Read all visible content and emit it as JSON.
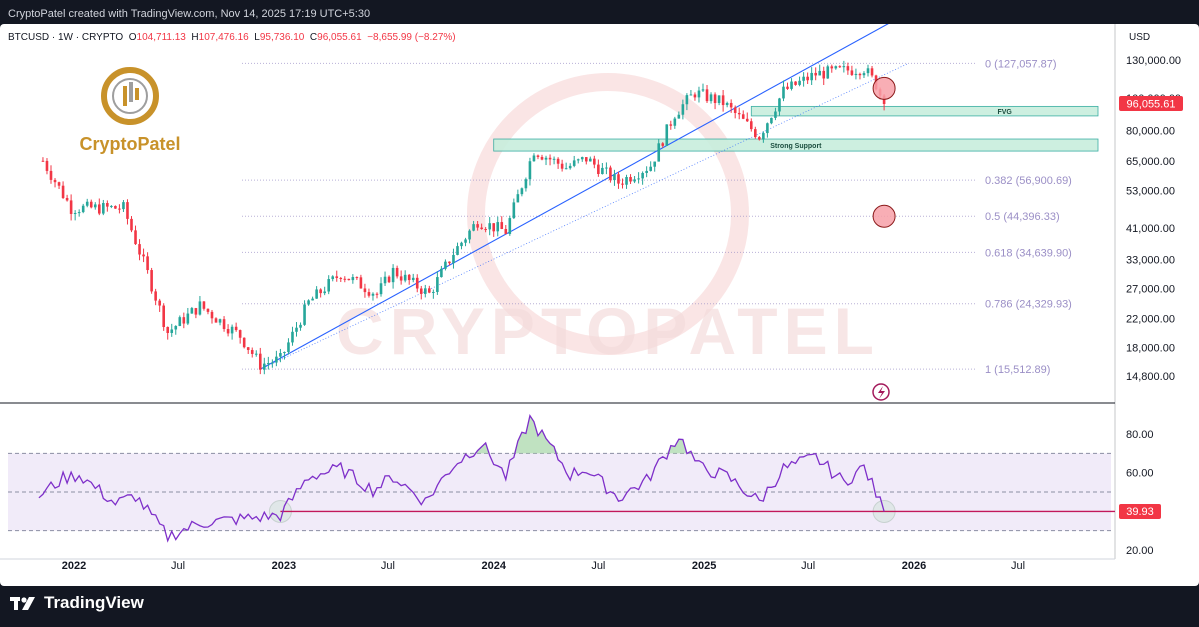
{
  "header": {
    "caption": "CryptoPatel created with TradingView.com, Nov 14, 2025 17:19 UTC+5:30"
  },
  "ohlc": {
    "symbol": "BTCUSD · 1W · CRYPTO",
    "o_label": "O",
    "o": "104,711.13",
    "h_label": "H",
    "h": "107,476.16",
    "l_label": "L",
    "l": "95,736.10",
    "c_label": "C",
    "c": "96,055.61",
    "change": "−8,655.99 (−8.27%)"
  },
  "currency": "USD",
  "watermark_logo": "CryptoPatel",
  "watermark_text": "CRYPTOPATEL",
  "footer": {
    "brand": "TradingView",
    "logo_icon": "tradingview-logo-icon"
  },
  "colors": {
    "bull": "#26a69a",
    "bear": "#f23645",
    "trend": "#2962ff",
    "fib": "#9b8fc6",
    "rsi": "#7e2fc9",
    "rsi_band": "#ede6f8",
    "zone": "#c8eedd",
    "zone_border": "#26a69a",
    "marker_red": "#f7a0a8",
    "marker_green": "#9be59b"
  },
  "chart_data": {
    "type": "candlestick",
    "price_axis": {
      "scale": "log",
      "ticks": [
        130000,
        100000,
        80000,
        65000,
        53000,
        41000,
        33000,
        27000,
        22000,
        18000,
        14800
      ],
      "tick_labels": [
        "130,000.00",
        "100,000.00",
        "80,000.00",
        "65,000.00",
        "53,000.00",
        "41,000.00",
        "33,000.00",
        "27,000.00",
        "22,000.00",
        "18,000.00",
        "14,800.00"
      ]
    },
    "last_price": {
      "value": 96055.61,
      "label": "96,055.61"
    },
    "x_axis": {
      "labels": [
        "2022",
        "Jul",
        "2023",
        "Jul",
        "2024",
        "Jul",
        "2025",
        "Jul",
        "2026",
        "Jul"
      ],
      "dates": [
        "2022-01-01",
        "2022-07-01",
        "2023-01-01",
        "2023-07-01",
        "2024-01-01",
        "2024-07-01",
        "2025-01-01",
        "2025-07-01",
        "2026-01-01",
        "2026-07-01"
      ]
    },
    "price_waypoints": [
      [
        "2021-11-08",
        65000
      ],
      [
        "2021-12-27",
        47000
      ],
      [
        "2022-03-28",
        47000
      ],
      [
        "2022-05-09",
        30000
      ],
      [
        "2022-06-13",
        20000
      ],
      [
        "2022-08-08",
        24000
      ],
      [
        "2022-10-17",
        19500
      ],
      [
        "2022-11-21",
        16000
      ],
      [
        "2022-12-26",
        16600
      ],
      [
        "2023-02-13",
        24500
      ],
      [
        "2023-04-10",
        30000
      ],
      [
        "2023-06-12",
        26000
      ],
      [
        "2023-07-10",
        30500
      ],
      [
        "2023-09-11",
        26000
      ],
      [
        "2023-10-23",
        34500
      ],
      [
        "2023-12-04",
        43000
      ],
      [
        "2024-01-22",
        40000
      ],
      [
        "2024-03-11",
        70000
      ],
      [
        "2024-05-06",
        62000
      ],
      [
        "2024-06-10",
        66000
      ],
      [
        "2024-08-05",
        56000
      ],
      [
        "2024-09-30",
        63000
      ],
      [
        "2024-11-11",
        90000
      ],
      [
        "2024-12-16",
        104000
      ],
      [
        "2025-02-03",
        97000
      ],
      [
        "2025-04-07",
        77000
      ],
      [
        "2025-05-19",
        105000
      ],
      [
        "2025-07-14",
        118000
      ],
      [
        "2025-10-06",
        123000
      ],
      [
        "2025-10-27",
        110000
      ],
      [
        "2025-11-10",
        96055
      ]
    ],
    "fib_levels": [
      {
        "ratio": "0",
        "price": 127057.87,
        "label": "0 (127,057.87)"
      },
      {
        "ratio": "0.382",
        "price": 56900.69,
        "label": "0.382 (56,900.69)"
      },
      {
        "ratio": "0.5",
        "price": 44396.33,
        "label": "0.5 (44,396.33)"
      },
      {
        "ratio": "0.618",
        "price": 34639.9,
        "label": "0.618 (34,639.90)"
      },
      {
        "ratio": "0.786",
        "price": 24329.93,
        "label": "0.786 (24,329.93)"
      },
      {
        "ratio": "1",
        "price": 15512.89,
        "label": "1 (15,512.89)"
      }
    ],
    "zones": [
      {
        "label": "FVG",
        "from": "2025-03-24",
        "price_low": 88500,
        "price_high": 94500
      },
      {
        "label": "Strong Support",
        "from": "2024-01-01",
        "price_low": 69500,
        "price_high": 75500
      }
    ],
    "trendlines": [
      {
        "style": "solid",
        "from": [
          "2022-11-21",
          15500
        ],
        "to": [
          "2025-12-22",
          180000
        ]
      },
      {
        "style": "dotted",
        "from": [
          "2022-11-21",
          15500
        ],
        "to": [
          "2025-12-22",
          127000
        ]
      }
    ],
    "markers": [
      {
        "type": "red-circle",
        "date": "2025-11-10",
        "price": 107000
      },
      {
        "type": "red-circle",
        "date": "2025-11-10",
        "price": 44396
      },
      {
        "type": "green-circle",
        "pane": "rsi",
        "date": "2022-12-26",
        "value": 39.93
      },
      {
        "type": "green-circle",
        "pane": "rsi",
        "date": "2025-11-10",
        "value": 39.93
      }
    ],
    "rsi": {
      "ticks": [
        80,
        60,
        20
      ],
      "tick_labels": [
        "80.00",
        "60.00",
        "20.00"
      ],
      "band": [
        30,
        70
      ],
      "midline": 50,
      "level": {
        "value": 39.93,
        "label": "39.93"
      },
      "waypoints": [
        [
          "2021-11-01",
          48
        ],
        [
          "2021-12-13",
          57
        ],
        [
          "2022-01-10",
          59
        ],
        [
          "2022-03-14",
          44
        ],
        [
          "2022-04-18",
          48
        ],
        [
          "2022-06-13",
          27
        ],
        [
          "2022-08-08",
          34
        ],
        [
          "2022-10-17",
          36
        ],
        [
          "2022-12-26",
          38
        ],
        [
          "2023-02-13",
          58
        ],
        [
          "2023-04-10",
          62
        ],
        [
          "2023-06-05",
          51
        ],
        [
          "2023-07-10",
          58
        ],
        [
          "2023-09-04",
          45
        ],
        [
          "2023-10-23",
          64
        ],
        [
          "2023-12-11",
          75
        ],
        [
          "2024-01-22",
          58
        ],
        [
          "2024-03-04",
          88
        ],
        [
          "2024-05-13",
          59
        ],
        [
          "2024-06-10",
          62
        ],
        [
          "2024-08-05",
          47
        ],
        [
          "2024-09-23",
          56
        ],
        [
          "2024-11-18",
          79
        ],
        [
          "2024-12-23",
          63
        ],
        [
          "2025-02-10",
          58
        ],
        [
          "2025-04-07",
          45
        ],
        [
          "2025-05-19",
          62
        ],
        [
          "2025-07-14",
          68
        ],
        [
          "2025-09-01",
          55
        ],
        [
          "2025-10-06",
          63
        ],
        [
          "2025-11-10",
          40
        ]
      ]
    }
  }
}
